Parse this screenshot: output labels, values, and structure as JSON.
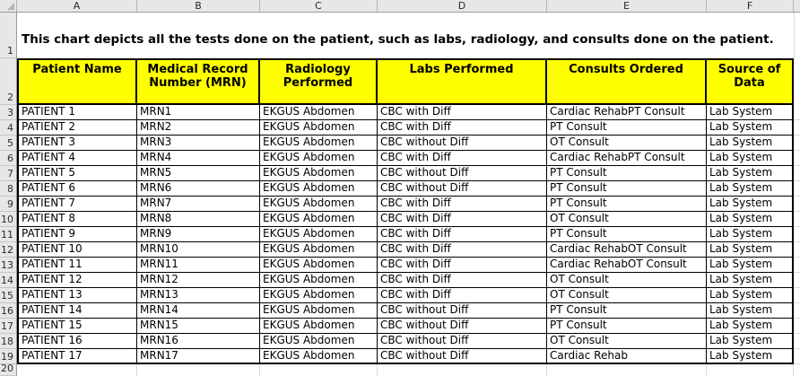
{
  "sheet": {
    "column_letters": [
      "A",
      "B",
      "C",
      "D",
      "E",
      "F"
    ],
    "row_numbers": [
      "1",
      "2",
      "3",
      "4",
      "5",
      "6",
      "7",
      "8",
      "9",
      "10",
      "11",
      "12",
      "13",
      "14",
      "15",
      "16",
      "17",
      "18",
      "19",
      "20"
    ],
    "title": "This chart depicts all the tests done on the patient, such as labs, radiology, and consults done on the patient.",
    "table": {
      "headers": [
        "Patient Name",
        "Medical Record Number (MRN)",
        "Radiology Performed",
        "Labs Performed",
        "Consults Ordered",
        "Source of Data"
      ],
      "rows": [
        [
          "PATIENT 1",
          "MRN1",
          "EKGUS Abdomen",
          "CBC with Diff",
          "Cardiac RehabPT Consult",
          "Lab System"
        ],
        [
          "PATIENT 2",
          "MRN2",
          "EKGUS Abdomen",
          "CBC with Diff",
          "PT Consult",
          "Lab System"
        ],
        [
          "PATIENT 3",
          "MRN3",
          "EKGUS Abdomen",
          "CBC without Diff",
          "OT Consult",
          "Lab System"
        ],
        [
          "PATIENT 4",
          "MRN4",
          "EKGUS Abdomen",
          "CBC with Diff",
          "Cardiac RehabPT Consult",
          "Lab System"
        ],
        [
          "PATIENT 5",
          "MRN5",
          "EKGUS Abdomen",
          "CBC without Diff",
          "PT Consult",
          "Lab System"
        ],
        [
          "PATIENT 6",
          "MRN6",
          "EKGUS Abdomen",
          "CBC without Diff",
          "PT Consult",
          "Lab System"
        ],
        [
          "PATIENT 7",
          "MRN7",
          "EKGUS Abdomen",
          "CBC with Diff",
          "PT Consult",
          "Lab System"
        ],
        [
          "PATIENT 8",
          "MRN8",
          "EKGUS Abdomen",
          "CBC with Diff",
          "OT Consult",
          "Lab System"
        ],
        [
          "PATIENT 9",
          "MRN9",
          "EKGUS Abdomen",
          "CBC with Diff",
          "PT Consult",
          "Lab System"
        ],
        [
          "PATIENT 10",
          "MRN10",
          "EKGUS Abdomen",
          "CBC with Diff",
          "Cardiac RehabOT Consult",
          "Lab System"
        ],
        [
          "PATIENT 11",
          "MRN11",
          "EKGUS Abdomen",
          "CBC with Diff",
          "Cardiac RehabOT Consult",
          "Lab System"
        ],
        [
          "PATIENT 12",
          "MRN12",
          "EKGUS Abdomen",
          "CBC with Diff",
          "OT Consult",
          "Lab System"
        ],
        [
          "PATIENT 13",
          "MRN13",
          "EKGUS Abdomen",
          "CBC with Diff",
          "OT Consult",
          "Lab System"
        ],
        [
          "PATIENT 14",
          "MRN14",
          "EKGUS Abdomen",
          "CBC without Diff",
          "PT Consult",
          "Lab System"
        ],
        [
          "PATIENT 15",
          "MRN15",
          "EKGUS Abdomen",
          "CBC without Diff",
          "PT Consult",
          "Lab System"
        ],
        [
          "PATIENT 16",
          "MRN16",
          "EKGUS Abdomen",
          "CBC without Diff",
          "OT Consult",
          "Lab System"
        ],
        [
          "PATIENT 17",
          "MRN17",
          "EKGUS Abdomen",
          "CBC without Diff",
          "Cardiac Rehab",
          "Lab System"
        ]
      ]
    },
    "colors": {
      "header_fill": "#FFFF00",
      "table_border": "#000000",
      "grid_header_bg": "#E7E7E5",
      "grid_header_border": "#9B9B9B",
      "gridline": "#D8D8D8"
    }
  }
}
